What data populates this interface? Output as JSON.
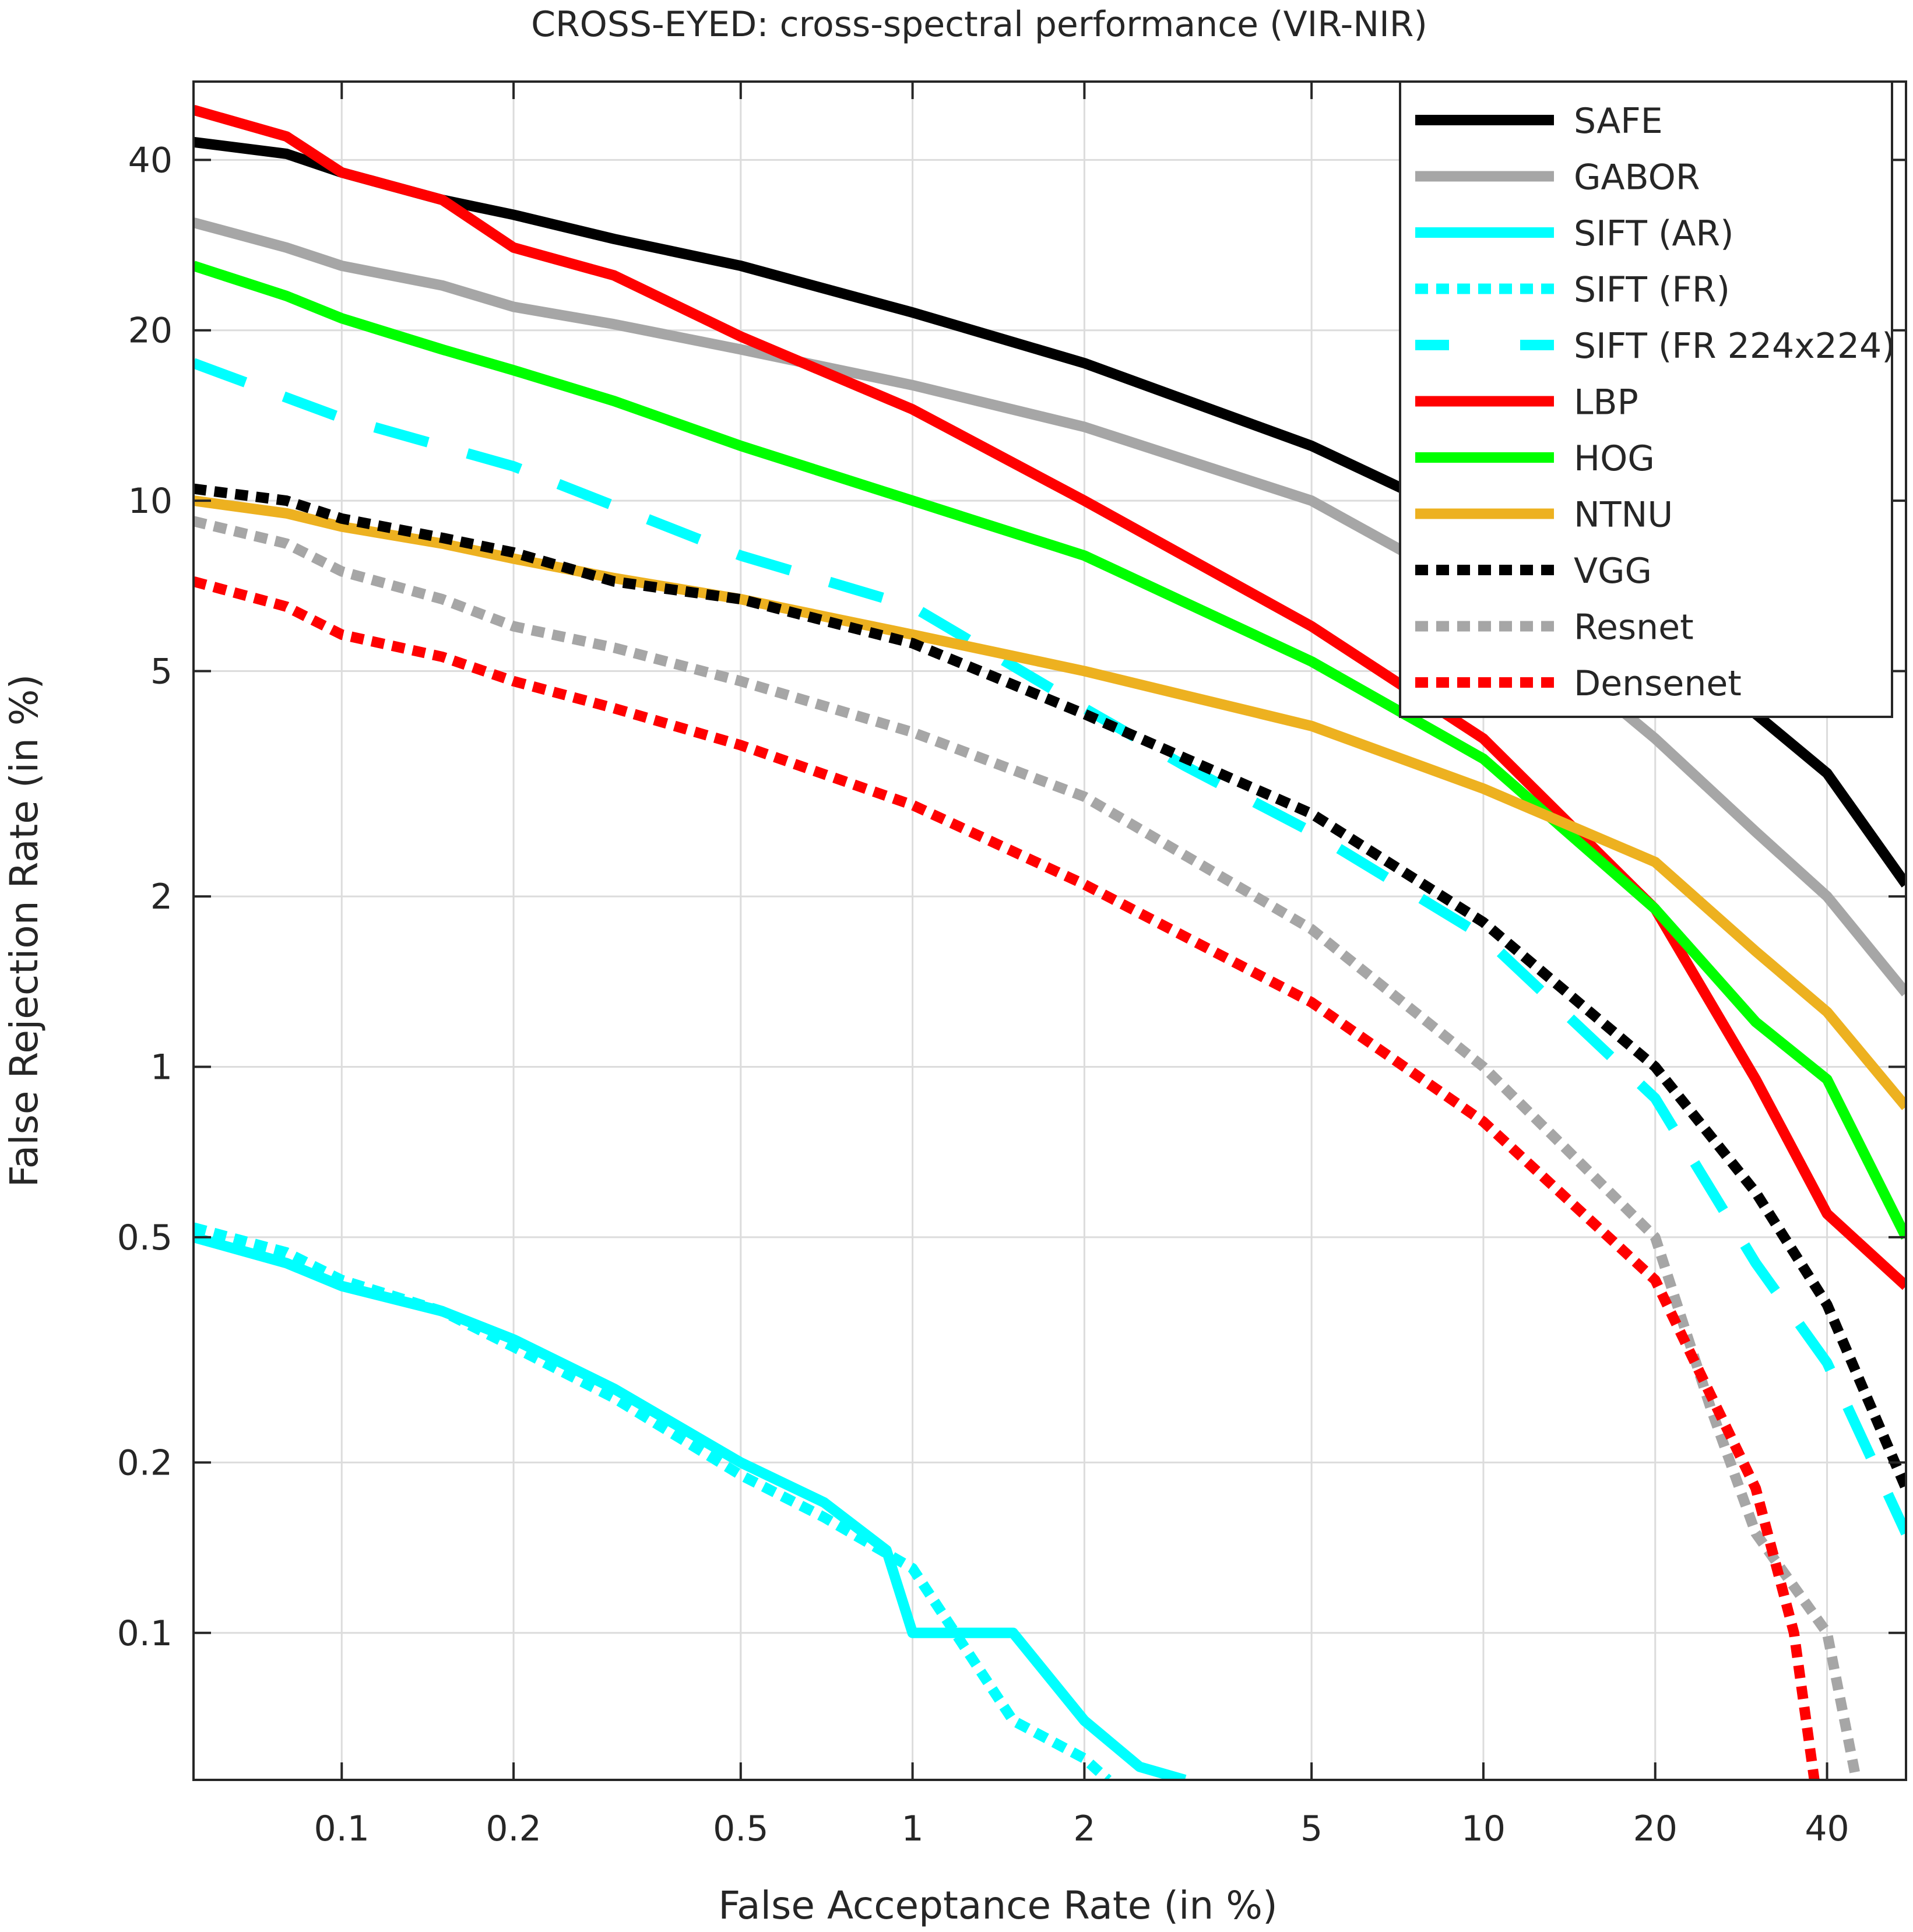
{
  "chart_data": {
    "type": "line",
    "title": "CROSS-EYED: cross-spectral performance (VIR-NIR)",
    "xlabel": "False Acceptance Rate (in %)",
    "ylabel": "False Rejection Rate (in %)",
    "xscale": "log",
    "yscale": "log",
    "xlim": [
      0.055,
      55
    ],
    "ylim": [
      0.055,
      55
    ],
    "grid": true,
    "legend_position": "top-right",
    "xticks": [
      0.1,
      0.2,
      0.5,
      1,
      2,
      5,
      10,
      20,
      40
    ],
    "xtick_labels": [
      "0.1",
      "0.2",
      "0.5",
      "1",
      "2",
      "5",
      "10",
      "20",
      "40"
    ],
    "yticks": [
      0.1,
      0.2,
      0.5,
      1,
      2,
      5,
      10,
      20,
      40
    ],
    "ytick_labels": [
      "0.1",
      "0.2",
      "0.5",
      "1",
      "2",
      "5",
      "10",
      "20",
      "40"
    ],
    "series": [
      {
        "name": "SAFE",
        "color": "#000000",
        "style": "solid",
        "x": [
          0.055,
          0.08,
          0.1,
          0.15,
          0.2,
          0.3,
          0.5,
          1,
          2,
          5,
          10,
          20,
          30,
          40,
          55
        ],
        "y": [
          43,
          41,
          38,
          34,
          32,
          29,
          26,
          21.5,
          17.5,
          12.5,
          9,
          5.7,
          4.2,
          3.3,
          2.1
        ]
      },
      {
        "name": "GABOR",
        "color": "#a6a6a6",
        "style": "solid",
        "x": [
          0.055,
          0.08,
          0.1,
          0.15,
          0.2,
          0.3,
          0.5,
          1,
          2,
          5,
          10,
          20,
          30,
          40,
          55
        ],
        "y": [
          31,
          28,
          26,
          24,
          22,
          20.5,
          18.5,
          16,
          13.5,
          10,
          6.8,
          3.8,
          2.6,
          2,
          1.35
        ]
      },
      {
        "name": "SIFT (AR)",
        "color": "#00ffff",
        "style": "solid",
        "x": [
          0.055,
          0.08,
          0.1,
          0.15,
          0.2,
          0.3,
          0.5,
          0.7,
          0.9,
          1,
          1.5,
          2,
          2.5,
          3
        ],
        "y": [
          0.5,
          0.45,
          0.41,
          0.37,
          0.33,
          0.27,
          0.2,
          0.17,
          0.14,
          0.1,
          0.1,
          0.07,
          0.058,
          0.055
        ]
      },
      {
        "name": "SIFT (FR)",
        "color": "#00ffff",
        "style": "dotted",
        "x": [
          0.055,
          0.08,
          0.1,
          0.15,
          0.2,
          0.3,
          0.5,
          0.7,
          1,
          1.5,
          2,
          2.2
        ],
        "y": [
          0.52,
          0.47,
          0.42,
          0.37,
          0.32,
          0.26,
          0.19,
          0.16,
          0.13,
          0.07,
          0.06,
          0.055
        ]
      },
      {
        "name": "SIFT (FR 224x224)",
        "color": "#00ffff",
        "style": "dashed",
        "x": [
          0.055,
          0.1,
          0.2,
          0.5,
          1,
          2,
          3,
          5,
          10,
          20,
          30,
          40,
          55
        ],
        "y": [
          17.5,
          14,
          11.5,
          8,
          6.5,
          4.3,
          3.4,
          2.6,
          1.7,
          0.88,
          0.45,
          0.3,
          0.15
        ]
      },
      {
        "name": "LBP",
        "color": "#ff0000",
        "style": "solid",
        "x": [
          0.055,
          0.08,
          0.1,
          0.15,
          0.2,
          0.3,
          0.5,
          1,
          2,
          5,
          10,
          20,
          30,
          40,
          55
        ],
        "y": [
          49,
          44,
          38,
          34,
          28,
          25,
          19.5,
          14.5,
          10,
          6,
          3.8,
          1.9,
          0.95,
          0.55,
          0.41
        ]
      },
      {
        "name": "HOG",
        "color": "#00ff00",
        "style": "solid",
        "x": [
          0.055,
          0.08,
          0.1,
          0.15,
          0.2,
          0.3,
          0.5,
          1,
          2,
          5,
          10,
          20,
          30,
          40,
          55
        ],
        "y": [
          26,
          23,
          21,
          18.5,
          17,
          15,
          12.5,
          10,
          8,
          5.2,
          3.5,
          1.9,
          1.2,
          0.95,
          0.5
        ]
      },
      {
        "name": "NTNU",
        "color": "#edb120",
        "style": "solid",
        "x": [
          0.055,
          0.08,
          0.1,
          0.15,
          0.2,
          0.3,
          0.5,
          1,
          2,
          5,
          10,
          20,
          30,
          40,
          55
        ],
        "y": [
          10,
          9.5,
          9,
          8.4,
          7.9,
          7.3,
          6.7,
          5.8,
          5,
          4,
          3.1,
          2.3,
          1.6,
          1.25,
          0.85
        ]
      },
      {
        "name": "VGG",
        "color": "#000000",
        "style": "dotted",
        "x": [
          0.055,
          0.08,
          0.1,
          0.15,
          0.2,
          0.3,
          0.5,
          1,
          2,
          5,
          10,
          20,
          30,
          40,
          55
        ],
        "y": [
          10.5,
          10,
          9.3,
          8.6,
          8.1,
          7.2,
          6.7,
          5.6,
          4.2,
          2.8,
          1.8,
          1,
          0.6,
          0.38,
          0.18
        ]
      },
      {
        "name": "Resnet",
        "color": "#a6a6a6",
        "style": "dotted",
        "x": [
          0.055,
          0.08,
          0.1,
          0.15,
          0.2,
          0.3,
          0.5,
          1,
          2,
          5,
          10,
          20,
          25,
          30,
          40,
          45
        ],
        "y": [
          9.2,
          8.4,
          7.5,
          6.7,
          6,
          5.5,
          4.8,
          3.9,
          3,
          1.75,
          1,
          0.5,
          0.25,
          0.15,
          0.1,
          0.055
        ]
      },
      {
        "name": "Densenet",
        "color": "#ff0000",
        "style": "dotted",
        "x": [
          0.055,
          0.08,
          0.1,
          0.15,
          0.2,
          0.3,
          0.5,
          1,
          2,
          5,
          10,
          20,
          30,
          35,
          38
        ],
        "y": [
          7.2,
          6.5,
          5.8,
          5.3,
          4.8,
          4.3,
          3.7,
          2.9,
          2.1,
          1.3,
          0.8,
          0.42,
          0.18,
          0.1,
          0.055
        ]
      }
    ]
  }
}
